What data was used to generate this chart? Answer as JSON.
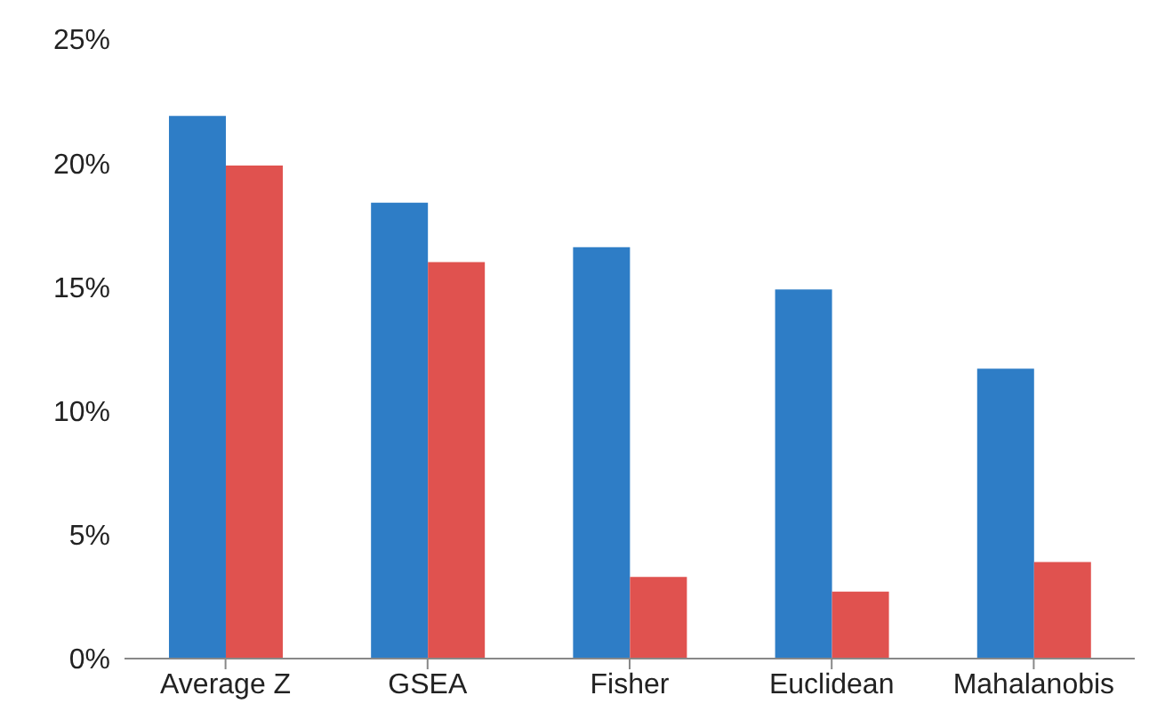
{
  "chart_data": {
    "type": "bar",
    "categories": [
      "Average Z",
      "GSEA",
      "Fisher",
      "Euclidean",
      "Mahalanobis"
    ],
    "series": [
      {
        "color": "#2e7dc6",
        "values": [
          21.9,
          18.4,
          16.6,
          14.9,
          11.7
        ]
      },
      {
        "color": "#e0524f",
        "values": [
          19.9,
          16.0,
          3.3,
          2.7,
          3.9
        ]
      }
    ],
    "ylim": [
      0,
      25
    ],
    "yticks": [
      {
        "value": 0,
        "label": "0%"
      },
      {
        "value": 5,
        "label": "5%"
      },
      {
        "value": 10,
        "label": "10%"
      },
      {
        "value": 15,
        "label": "15%"
      },
      {
        "value": 20,
        "label": "20%"
      },
      {
        "value": 25,
        "label": "25%"
      }
    ],
    "grid": false,
    "legend": false
  }
}
